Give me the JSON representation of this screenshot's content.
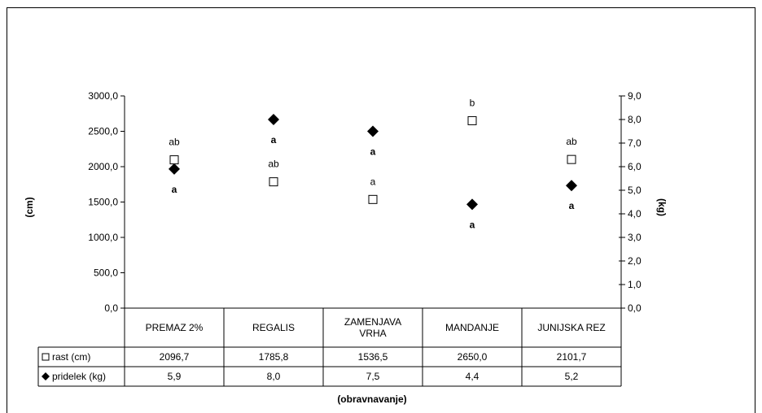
{
  "chart_data": {
    "type": "scatter",
    "categories": [
      "PREMAZ 2%",
      "REGALIS",
      "ZAMENJAVA VRHA",
      "MANDANJE",
      "JUNIJSKA REZ"
    ],
    "category_lines": [
      [
        "PREMAZ 2%"
      ],
      [
        "REGALIS"
      ],
      [
        "ZAMENJAVA",
        "VRHA"
      ],
      [
        "MANDANJE"
      ],
      [
        "JUNIJSKA REZ"
      ]
    ],
    "xlabel": "(obravnavanje)",
    "ylabel_left": "(cm)",
    "ylabel_right": "(kg)",
    "ylim_left": [
      0,
      3000
    ],
    "ylim_right": [
      0,
      9
    ],
    "yticks_left": [
      "0,0",
      "500,0",
      "1000,0",
      "1500,0",
      "2000,0",
      "2500,0",
      "3000,0"
    ],
    "yticks_right": [
      "0,0",
      "1,0",
      "2,0",
      "3,0",
      "4,0",
      "5,0",
      "6,0",
      "7,0",
      "8,0",
      "9,0"
    ],
    "grid": false,
    "legend": "data-table-below",
    "series": [
      {
        "name": "rast (cm)",
        "axis": "left",
        "marker": "open-square",
        "color": "#000000",
        "values": [
          2096.7,
          1785.8,
          1536.5,
          2650.0,
          2101.7
        ],
        "value_labels": [
          "2096,7",
          "1785,8",
          "1536,5",
          "2650,0",
          "2101,7"
        ],
        "annotations": [
          "ab",
          "ab",
          "a",
          "b",
          "ab"
        ]
      },
      {
        "name": "pridelek (kg)",
        "axis": "right",
        "marker": "filled-diamond",
        "color": "#000000",
        "values": [
          5.9,
          8.0,
          7.5,
          4.4,
          5.2
        ],
        "value_labels": [
          "5,9",
          "8,0",
          "7,5",
          "4,4",
          "5,2"
        ],
        "annotations": [
          "a",
          "a",
          "a",
          "a",
          "a"
        ]
      }
    ]
  },
  "legend_symbols": {
    "rast": "□",
    "pridelek": "◆"
  }
}
